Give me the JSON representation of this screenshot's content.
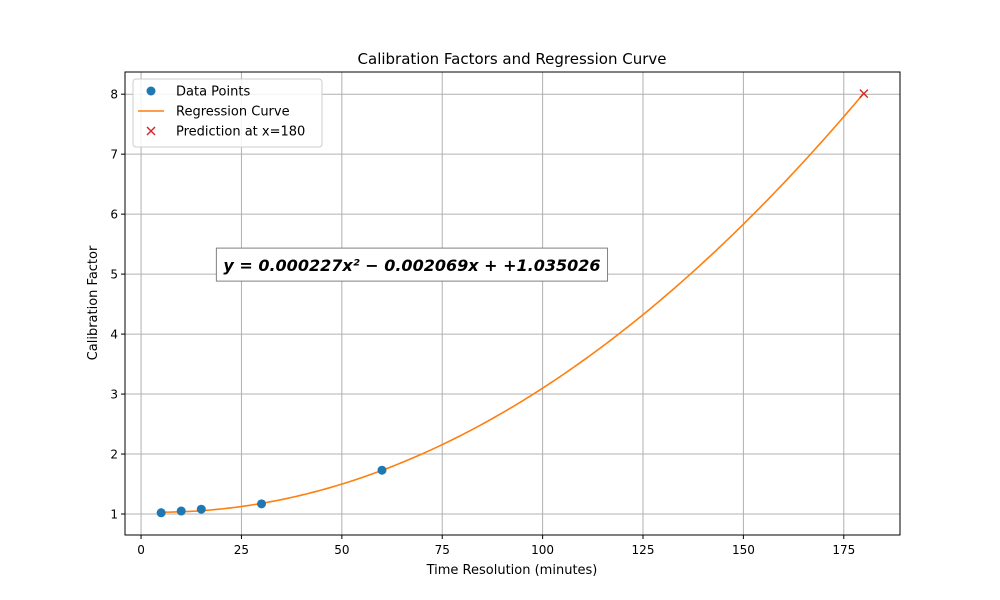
{
  "chart_data": {
    "type": "scatter",
    "title": "Calibration Factors and Regression Curve",
    "xlabel": "Time Resolution (minutes)",
    "ylabel": "Calibration Factor",
    "xlim": [
      -4,
      189
    ],
    "ylim": [
      0.65,
      8.37
    ],
    "xticks": [
      0,
      25,
      50,
      75,
      100,
      125,
      150,
      175
    ],
    "yticks": [
      1,
      2,
      3,
      4,
      5,
      6,
      7,
      8
    ],
    "grid": true,
    "legend_position": "top-left",
    "series": [
      {
        "name": "Data Points",
        "kind": "scatter",
        "marker": "circle",
        "color": "#1f77b4",
        "x": [
          5,
          10,
          15,
          30,
          60
        ],
        "y": [
          1.02,
          1.05,
          1.08,
          1.17,
          1.73
        ]
      },
      {
        "name": "Regression Curve",
        "kind": "line",
        "color": "#ff7f0e",
        "coefficients": [
          0.000227,
          -0.002069,
          1.035026
        ],
        "x_range": [
          5,
          180
        ]
      },
      {
        "name": "Prediction at x=180",
        "kind": "scatter",
        "marker": "x",
        "color": "#d62728",
        "x": [
          180
        ],
        "y": [
          8.01
        ]
      }
    ],
    "annotation": {
      "text": "y = 0.000227x² − 0.002069x + +1.035026",
      "x": 20,
      "y": 5.1
    }
  }
}
